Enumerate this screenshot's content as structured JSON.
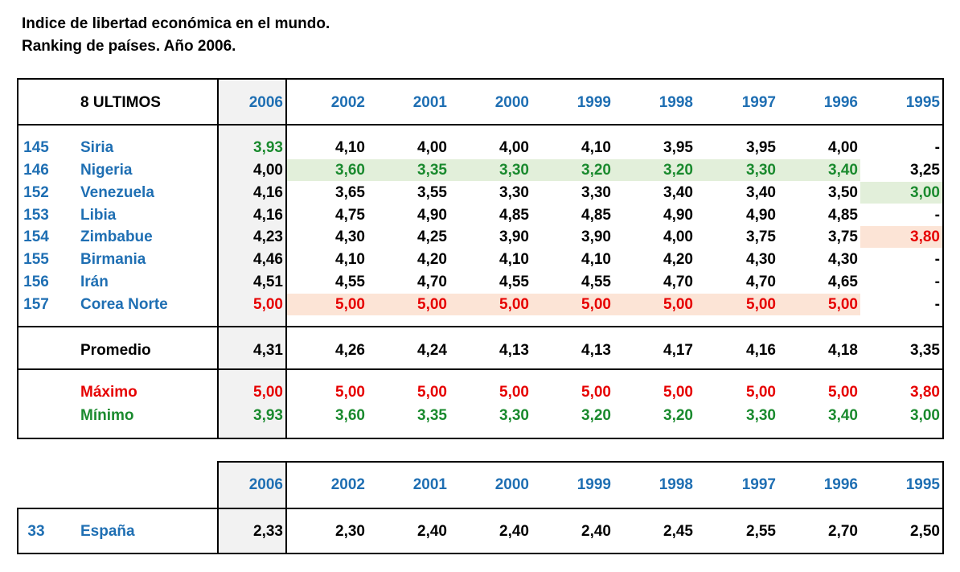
{
  "title": {
    "line1": "Indice de libertad económica en el mundo.",
    "line2": "Ranking de países.  Año 2006."
  },
  "colors": {
    "blue": "#1f6fb3",
    "red": "#e60000",
    "green": "#1a8a2e",
    "green_fill": "#e2efda",
    "red_fill": "#fce4d6"
  },
  "top_table": {
    "header_label": "8 ULTIMOS",
    "years": [
      "2006",
      "2002",
      "2001",
      "2000",
      "1999",
      "1998",
      "1997",
      "1996",
      "1995"
    ],
    "rows": [
      {
        "rank": "145",
        "name": "Siria",
        "values": [
          "3,93",
          "4,10",
          "4,00",
          "4,00",
          "4,10",
          "3,95",
          "3,95",
          "4,00",
          "-"
        ],
        "colors": [
          "g",
          "k",
          "k",
          "k",
          "k",
          "k",
          "k",
          "k",
          "k"
        ]
      },
      {
        "rank": "146",
        "name": "Nigeria",
        "values": [
          "4,00",
          "3,60",
          "3,35",
          "3,30",
          "3,20",
          "3,20",
          "3,30",
          "3,40",
          "3,25"
        ],
        "colors": [
          "k",
          "g",
          "g",
          "g",
          "g",
          "g",
          "g",
          "g",
          "k"
        ]
      },
      {
        "rank": "152",
        "name": "Venezuela",
        "values": [
          "4,16",
          "3,65",
          "3,55",
          "3,30",
          "3,30",
          "3,40",
          "3,40",
          "3,50",
          "3,00"
        ],
        "colors": [
          "k",
          "k",
          "k",
          "k",
          "k",
          "k",
          "k",
          "k",
          "g"
        ]
      },
      {
        "rank": "153",
        "name": "Libia",
        "values": [
          "4,16",
          "4,75",
          "4,90",
          "4,85",
          "4,85",
          "4,90",
          "4,90",
          "4,85",
          "-"
        ],
        "colors": [
          "k",
          "k",
          "k",
          "k",
          "k",
          "k",
          "k",
          "k",
          "k"
        ]
      },
      {
        "rank": "154",
        "name": "Zimbabue",
        "values": [
          "4,23",
          "4,30",
          "4,25",
          "3,90",
          "3,90",
          "4,00",
          "3,75",
          "3,75",
          "3,80"
        ],
        "colors": [
          "k",
          "k",
          "k",
          "k",
          "k",
          "k",
          "k",
          "k",
          "r"
        ]
      },
      {
        "rank": "155",
        "name": "Birmania",
        "values": [
          "4,46",
          "4,10",
          "4,20",
          "4,10",
          "4,10",
          "4,20",
          "4,30",
          "4,30",
          "-"
        ],
        "colors": [
          "k",
          "k",
          "k",
          "k",
          "k",
          "k",
          "k",
          "k",
          "k"
        ]
      },
      {
        "rank": "156",
        "name": "Irán",
        "values": [
          "4,51",
          "4,55",
          "4,70",
          "4,55",
          "4,55",
          "4,70",
          "4,70",
          "4,65",
          "-"
        ],
        "colors": [
          "k",
          "k",
          "k",
          "k",
          "k",
          "k",
          "k",
          "k",
          "k"
        ]
      },
      {
        "rank": "157",
        "name": "Corea Norte",
        "values": [
          "5,00",
          "5,00",
          "5,00",
          "5,00",
          "5,00",
          "5,00",
          "5,00",
          "5,00",
          "-"
        ],
        "colors": [
          "r",
          "r",
          "r",
          "r",
          "r",
          "r",
          "r",
          "r",
          "k"
        ]
      }
    ],
    "promedio": {
      "label": "Promedio",
      "values": [
        "4,31",
        "4,26",
        "4,24",
        "4,13",
        "4,13",
        "4,17",
        "4,16",
        "4,18",
        "3,35"
      ]
    },
    "maximo": {
      "label": "Máximo",
      "values": [
        "5,00",
        "5,00",
        "5,00",
        "5,00",
        "5,00",
        "5,00",
        "5,00",
        "5,00",
        "3,80"
      ]
    },
    "minimo": {
      "label": "Mínimo",
      "values": [
        "3,93",
        "3,60",
        "3,35",
        "3,30",
        "3,20",
        "3,20",
        "3,30",
        "3,40",
        "3,00"
      ]
    }
  },
  "bottom_table": {
    "years": [
      "2006",
      "2002",
      "2001",
      "2000",
      "1999",
      "1998",
      "1997",
      "1996",
      "1995"
    ],
    "row": {
      "rank": "33",
      "name": "España",
      "values": [
        "2,33",
        "2,30",
        "2,40",
        "2,40",
        "2,40",
        "2,45",
        "2,55",
        "2,70",
        "2,50"
      ]
    }
  }
}
